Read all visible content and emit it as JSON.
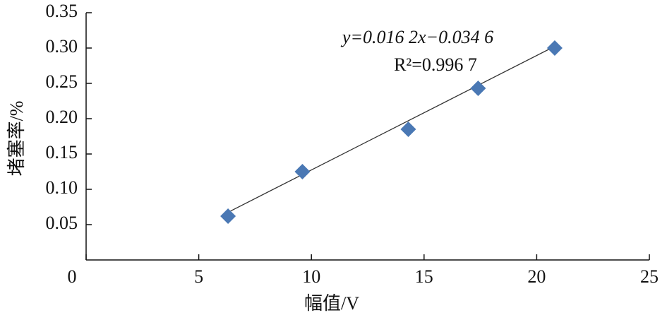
{
  "chart_data": {
    "type": "scatter",
    "x_label": "幅值/V",
    "y_label": "堵塞率/%",
    "series": [
      {
        "color": "#4a78b4",
        "x": [
          6.3,
          9.6,
          14.3,
          17.4,
          20.8
        ],
        "values": [
          0.062,
          0.125,
          0.185,
          0.243,
          0.3
        ]
      }
    ],
    "trendline": {
      "slope": 0.0162,
      "intercept": -0.0346,
      "color": "#333333"
    },
    "annotations": [
      "y=0.016 2x−0.034 6",
      "R²=0.996 7"
    ],
    "xlim": [
      0,
      25
    ],
    "xticks": [
      0,
      5,
      10,
      15,
      20,
      25
    ],
    "ylim": [
      0,
      0.35
    ],
    "yticks": [
      0.05,
      {
        "value": 0.1,
        "label": "0.10"
      },
      0.15,
      {
        "value": 0.2,
        "label": "0.20"
      },
      0.25,
      {
        "value": 0.3,
        "label": "0.30"
      },
      0.35
    ]
  }
}
